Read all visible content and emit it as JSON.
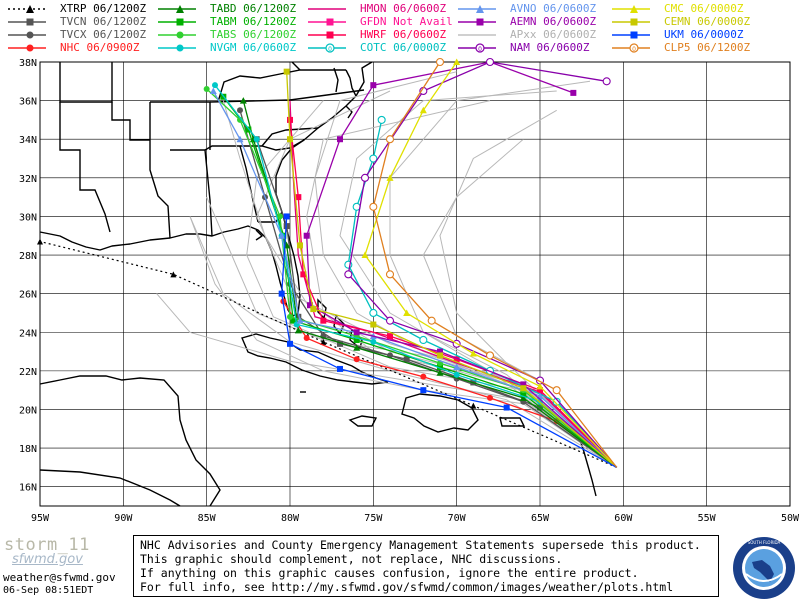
{
  "legend": [
    {
      "label": "XTRP",
      "time": "06/1200Z",
      "color": "#000000",
      "marker": "triangle",
      "dotted": true
    },
    {
      "label": "TVCN",
      "time": "06/1200Z",
      "color": "#555555",
      "marker": "square"
    },
    {
      "label": "TVCX",
      "time": "06/1200Z",
      "color": "#555555",
      "marker": "circle"
    },
    {
      "label": "NHC",
      "time": "06/0900Z",
      "color": "#ff2020",
      "marker": "circle"
    },
    {
      "label": "TABD",
      "time": "06/1200Z",
      "color": "#008000",
      "marker": "triangle"
    },
    {
      "label": "TABM",
      "time": "06/1200Z",
      "color": "#00b000",
      "marker": "square"
    },
    {
      "label": "TABS",
      "time": "06/1200Z",
      "color": "#30d030",
      "marker": "circle"
    },
    {
      "label": "NVGM",
      "time": "06/0600Z",
      "color": "#00c8c8",
      "marker": "circle"
    },
    {
      "label": "HMON",
      "time": "06/0600Z",
      "color": "#e0007a",
      "marker": "line"
    },
    {
      "label": "GFDN",
      "time": "Not Avail",
      "color": "#ff1493",
      "marker": "square"
    },
    {
      "label": "HWRF",
      "time": "06/0600Z",
      "color": "#ff0050",
      "marker": "square"
    },
    {
      "label": "COTC",
      "time": "06/0000Z",
      "color": "#00c0c0",
      "marker": "ring"
    },
    {
      "label": "AVNO",
      "time": "06/0600Z",
      "color": "#6495ed",
      "marker": "triangle"
    },
    {
      "label": "AEMN",
      "time": "06/0600Z",
      "color": "#9900aa",
      "marker": "square"
    },
    {
      "label": "APxx",
      "time": "06/0600Z",
      "color": "#c0c0c0",
      "marker": "line"
    },
    {
      "label": "NAM",
      "time": "06/0600Z",
      "color": "#8800aa",
      "marker": "ring"
    },
    {
      "label": "CMC",
      "time": "06/0000Z",
      "color": "#e0e000",
      "marker": "triangle"
    },
    {
      "label": "CEMN",
      "time": "06/0000Z",
      "color": "#c8c800",
      "marker": "square"
    },
    {
      "label": "UKM",
      "time": "06/0000Z",
      "color": "#0040ff",
      "marker": "square"
    },
    {
      "label": "CLP5",
      "time": "06/1200Z",
      "color": "#e08020",
      "marker": "ring"
    }
  ],
  "map": {
    "lat_ticks": [
      "38N",
      "36N",
      "34N",
      "32N",
      "30N",
      "28N",
      "26N",
      "24N",
      "22N",
      "20N",
      "18N",
      "16N"
    ],
    "lon_ticks": [
      "95W",
      "90W",
      "85W",
      "80W",
      "75W",
      "70W",
      "65W",
      "60W",
      "55W",
      "50W"
    ],
    "lon_range": [
      -95,
      -50
    ],
    "lat_range": [
      15,
      38
    ]
  },
  "brand": {
    "name": "storm_11",
    "sub": "sfwmd.gov",
    "email": "weather@sfwmd.gov",
    "date": "06-Sep 08:51EDT"
  },
  "disclaimer": {
    "line1": "NHC Advisories and County Emergency Management Statements supersede this product.",
    "line2": "This graphic should complement, not replace, NHC discussions.",
    "line3": "If anything on this graphic causes confusion, ignore the entire product.",
    "line4": "For full info, see  http://my.sfwmd.gov/sfwmd/common/images/weather/plots.html"
  },
  "logo": {
    "text": "SOUTH FLORIDA WATER MANAGEMENT DISTRICT"
  }
}
